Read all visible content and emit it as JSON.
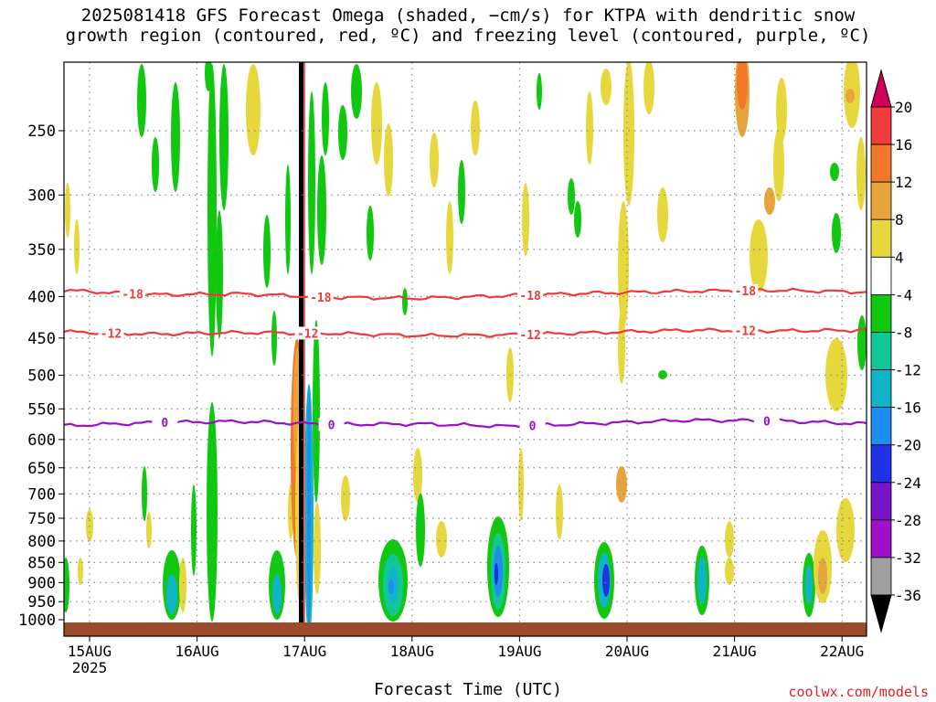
{
  "title": {
    "line1": "2025081418 GFS Forecast Omega (shaded, −cm/s) for KTPA with dendritic snow",
    "line2": "growth region (contoured, red, ºC) and freezing level (contoured, purple, ºC)"
  },
  "xaxis_title": "Forecast Time (UTC)",
  "credit": "coolwx.com/models",
  "colors": {
    "dgz_contour": "#ee3a3a",
    "freezing_contour": "#9a10c8",
    "terrain": "#9c4a2a",
    "grid": "#888888"
  },
  "colorbar": {
    "labels": [
      "20",
      "16",
      "12",
      "8",
      "4",
      "-4",
      "-8",
      "-12",
      "-16",
      "-20",
      "-24",
      "-28",
      "-32",
      "-36"
    ],
    "colors": [
      "#d0005a",
      "#f03c3c",
      "#f07828",
      "#e8a43c",
      "#e6d83c",
      "#ffffff",
      "#10c810",
      "#10c896",
      "#10b4c8",
      "#1e8cf0",
      "#1e32e6",
      "#7814c8",
      "#a010c8",
      "#a0a0a0",
      "#000000"
    ]
  },
  "chart_data": {
    "type": "heatmap",
    "xlabel": "Forecast Time (UTC)",
    "ylabel": "",
    "x_ticks": [
      "15AUG",
      "16AUG",
      "17AUG",
      "18AUG",
      "19AUG",
      "20AUG",
      "21AUG",
      "22AUG"
    ],
    "x_tick_sublabel": "2025",
    "y_ticks": [
      250,
      300,
      350,
      400,
      450,
      500,
      550,
      600,
      650,
      700,
      750,
      800,
      850,
      900,
      950,
      1000
    ],
    "ylim": [
      1020,
      200
    ],
    "contours": [
      {
        "label": "-18",
        "levels_hPa": [
          393,
          398,
          397,
          401,
          402,
          399,
          396,
          394,
          393,
          395
        ]
      },
      {
        "label": "-12",
        "levels_hPa": [
          442,
          445,
          443,
          444,
          447,
          446,
          443,
          440,
          441,
          440
        ]
      },
      {
        "label": "0",
        "levels_hPa": [
          577,
          572,
          570,
          575,
          574,
          578,
          573,
          568,
          569,
          574
        ]
      }
    ],
    "contour_line_labels": [
      {
        "contour": "-18",
        "x_days": [
          0.4,
          2.15,
          4.1,
          6.1
        ]
      },
      {
        "contour": "-12",
        "x_days": [
          0.2,
          2.03,
          4.1,
          6.1
        ]
      },
      {
        "contour": "0",
        "x_days": [
          0.7,
          2.25,
          4.12,
          6.3
        ]
      }
    ]
  }
}
